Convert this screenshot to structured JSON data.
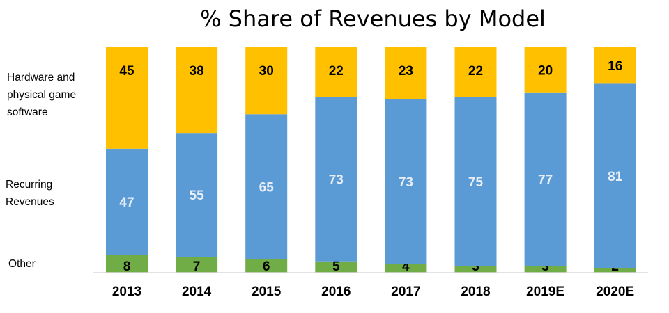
{
  "chart_data": {
    "type": "bar",
    "stacked": true,
    "title": "% Share of Revenues by Model",
    "categories": [
      "2013",
      "2014",
      "2015",
      "2016",
      "2017",
      "2018",
      "2019E",
      "2020E"
    ],
    "series": [
      {
        "name": "Other",
        "values": [
          8,
          7,
          6,
          5,
          4,
          3,
          3,
          2
        ],
        "color": "#70ad47",
        "label_color": "#000000"
      },
      {
        "name": "Recurring Revenues",
        "values": [
          47,
          55,
          65,
          73,
          73,
          75,
          77,
          81
        ],
        "color": "#5b9bd5",
        "label_color": "#e8eef7"
      },
      {
        "name": "Hardware and physical game software",
        "values": [
          45,
          38,
          30,
          22,
          23,
          22,
          20,
          16
        ],
        "color": "#ffc000",
        "label_color": "#000000"
      }
    ],
    "ylim": [
      0,
      100
    ],
    "grid": false,
    "legend_position": "left",
    "xlabel": "",
    "ylabel": ""
  },
  "legend": {
    "hardware": "Hardware and physical game software",
    "recurring": "Recurring Revenues",
    "other": "Other"
  }
}
